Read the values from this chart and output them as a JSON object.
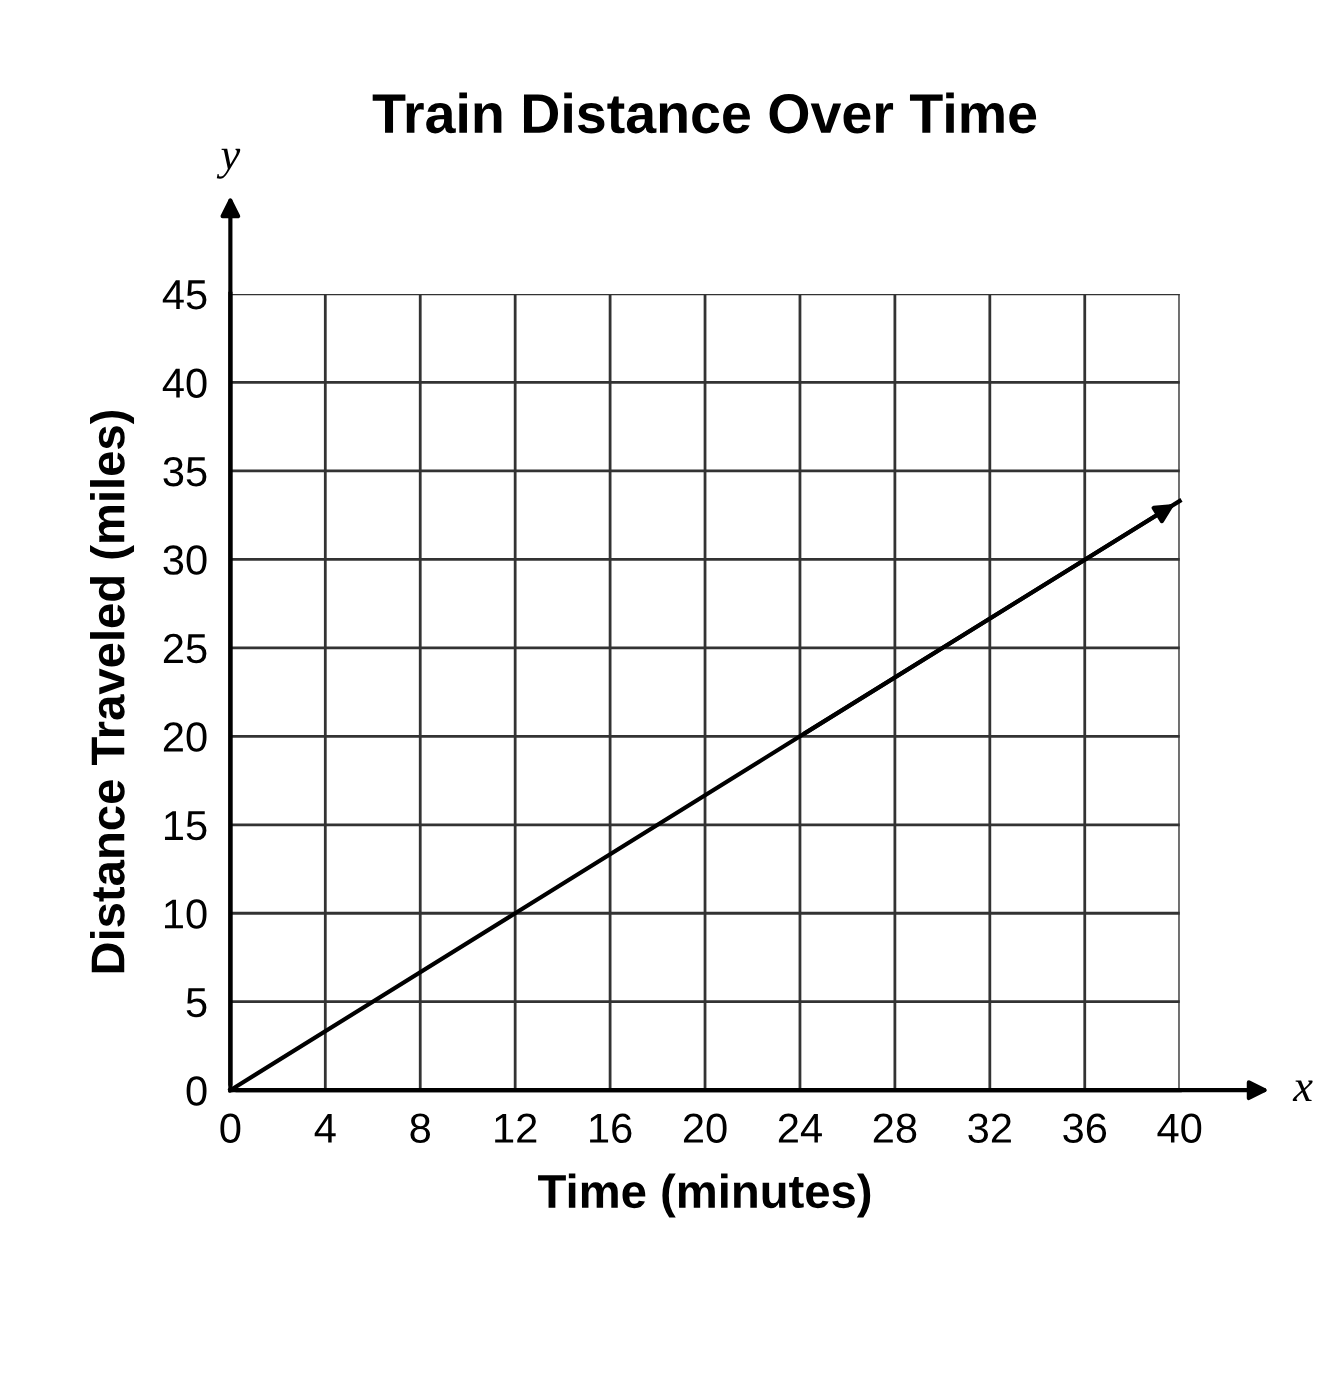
{
  "chart_data": {
    "type": "line",
    "title": "Train Distance Over Time",
    "xlabel": "Time (minutes)",
    "ylabel": "Distance Traveled (miles)",
    "series": [
      {
        "color": "#000000",
        "x": [
          0,
          12,
          24,
          40
        ],
        "values": [
          0,
          10,
          20,
          33.3
        ]
      }
    ],
    "xlim": [
      0,
      40
    ],
    "xticks": [
      0,
      4,
      8,
      12,
      16,
      20,
      24,
      28,
      32,
      36,
      40
    ],
    "ylim": [
      0,
      45
    ],
    "yticks": [
      0,
      5,
      10,
      15,
      20,
      25,
      30,
      35,
      40,
      45
    ],
    "grid": true,
    "marker": "none",
    "line_style": "solid",
    "annotations": [
      "x",
      "y"
    ]
  }
}
